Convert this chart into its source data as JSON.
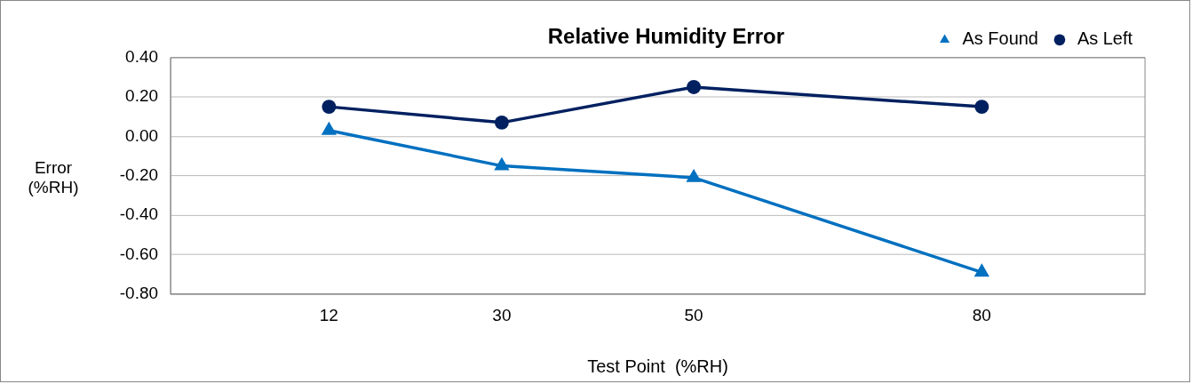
{
  "chart_data": {
    "type": "line",
    "title": "Relative Humidity Error",
    "xlabel": "Test Point  (%RH)",
    "ylabel": "Error (%RH)",
    "x": [
      12,
      30,
      50,
      80
    ],
    "xlim": [
      -4.5,
      97
    ],
    "xticks": [
      12,
      30,
      50,
      80
    ],
    "ylim": [
      -0.8,
      0.4
    ],
    "yticks": [
      {
        "value": -0.8,
        "label": "-0.80"
      },
      {
        "value": -0.6,
        "label": "-0.60"
      },
      {
        "value": -0.4,
        "label": "-0.40"
      },
      {
        "value": -0.2,
        "label": "-0.20"
      },
      {
        "value": 0,
        "label": "0.00"
      },
      {
        "value": 0.2,
        "label": "0.20"
      },
      {
        "value": 0.4,
        "label": "0.40"
      }
    ],
    "grid": "y",
    "legend": "top right",
    "series": [
      {
        "name": "As Found",
        "color": "#0070c0",
        "marker": "triangle",
        "values": [
          0.03,
          -0.15,
          -0.21,
          -0.69
        ]
      },
      {
        "name": "As Left",
        "color": "#002060",
        "marker": "circle",
        "values": [
          0.15,
          0.07,
          0.25,
          0.15
        ]
      }
    ]
  }
}
